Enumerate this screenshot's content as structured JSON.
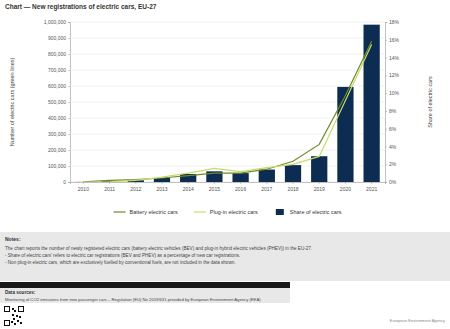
{
  "chart_data": {
    "type": "bar",
    "title": "Chart — New registrations of electric cars, EU-27",
    "categories": [
      "2010",
      "2011",
      "2012",
      "2013",
      "2014",
      "2015",
      "2016",
      "2017",
      "2018",
      "2019",
      "2020",
      "2021"
    ],
    "y_label": "Number of electric cars (green lines)",
    "y2_label": "Share of electric cars",
    "ylim": [
      0,
      1000000
    ],
    "yticks": [
      0,
      {
        "value": 100000,
        "label": "100,000"
      },
      {
        "value": 200000,
        "label": "200,000"
      },
      {
        "value": 300000,
        "label": "300,000"
      },
      {
        "value": 400000,
        "label": "400,000"
      },
      {
        "value": 500000,
        "label": "500,000"
      },
      {
        "value": 600000,
        "label": "600,000"
      },
      {
        "value": 700000,
        "label": "700,000"
      },
      {
        "value": 800000,
        "label": "800,000"
      },
      {
        "value": 900000,
        "label": "900,000"
      },
      {
        "value": 1000000,
        "label": "1,000,000"
      }
    ],
    "y2lim": [
      0,
      18
    ],
    "y2ticks": [
      {
        "value": 0,
        "label": "0%"
      },
      {
        "value": 2,
        "label": "2%"
      },
      {
        "value": 4,
        "label": "4%"
      },
      {
        "value": 6,
        "label": "6%"
      },
      {
        "value": 8,
        "label": "8%"
      },
      {
        "value": 10,
        "label": "10%"
      },
      {
        "value": 12,
        "label": "12%"
      },
      {
        "value": 14,
        "label": "14%"
      },
      {
        "value": 16,
        "label": "16%"
      },
      {
        "value": 18,
        "label": "18%"
      }
    ],
    "grid": true,
    "legend": "bottom",
    "series": [
      {
        "name": "Battery electric cars",
        "type": "line",
        "color": "#6e8a2a",
        "values": [
          1000,
          10000,
          15000,
          25000,
          40000,
          55000,
          55000,
          80000,
          130000,
          235000,
          540000,
          880000
        ]
      },
      {
        "name": "Plug-in electric cars",
        "type": "line",
        "color": "#c9da6c",
        "values": [
          0,
          1000,
          10000,
          30000,
          55000,
          85000,
          65000,
          90000,
          110000,
          160000,
          510000,
          860000
        ]
      },
      {
        "name": "Share of electric cars",
        "type": "bar",
        "axis": "y2",
        "color": "#0c2c52",
        "values": [
          0.01,
          0.1,
          0.2,
          0.45,
          0.9,
          1.2,
          1.0,
          1.4,
          1.9,
          2.9,
          10.7,
          17.7
        ]
      }
    ]
  },
  "notes": {
    "heading": "Notes:",
    "lines": [
      "The chart reports the number of newly registered electric cars (battery electric vehicles (BEV) and plug-in hybrid electric vehicles (PHEV)) in the EU-27.",
      "- Share of electric cars' refers to electric car registrations (BEV and PHEV) as a percentage of new car registrations.",
      "- Non plug-in electric cars, which are exclusively fuelled by conventional fuels, are not included in the data shown."
    ]
  },
  "sources": {
    "heading": "Data sources:",
    "text": "Monitoring of CO2 emissions from new passenger cars – Regulation (EU) No 2019/631 provided by European Environment Agency (EEA)"
  },
  "footer": "European Environment Agency"
}
